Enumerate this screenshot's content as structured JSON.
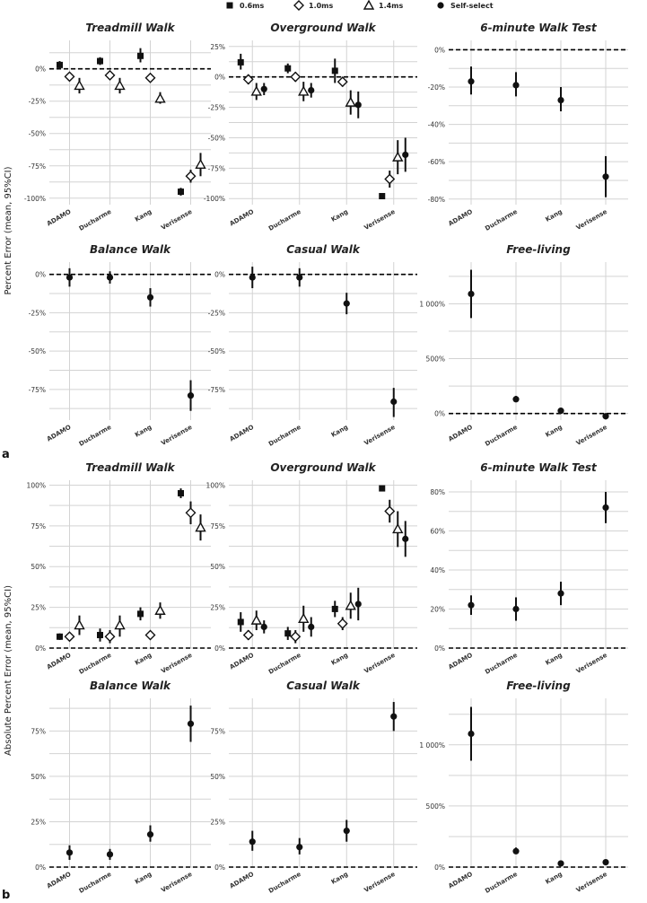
{
  "legend": [
    {
      "label": "0.6ms",
      "marker": "square"
    },
    {
      "label": "1.0ms",
      "marker": "diamond"
    },
    {
      "label": "1.4ms",
      "marker": "triangle"
    },
    {
      "label": "Self-select",
      "marker": "circle"
    }
  ],
  "ylabels": {
    "a": "Percent Error (mean, 95%CI)",
    "b": "Absolute Percent Error (mean, 95%CI)"
  },
  "panel_labels": {
    "a": "a",
    "b": "b"
  },
  "categories": [
    "ADAMO",
    "Ducharme",
    "Kang",
    "Verisense"
  ],
  "colors": {
    "marker": "#111111",
    "grid": "#d3d3d3",
    "reference": "#000000"
  },
  "chart_data": [
    {
      "type": "scatter",
      "section": "a",
      "title": "Treadmill Walk",
      "ylim": [
        -105,
        22
      ],
      "yticks": [
        0,
        -25,
        -50,
        -75,
        -100
      ],
      "yticklabels": [
        "0%",
        "-25%",
        "-50%",
        "-75%",
        "-100%"
      ],
      "series": [
        {
          "name": "0.6ms",
          "points": [
            {
              "x": "ADAMO",
              "y": 3,
              "lo": 0,
              "hi": 6
            },
            {
              "x": "Ducharme",
              "y": 6,
              "lo": 3,
              "hi": 9
            },
            {
              "x": "Kang",
              "y": 10,
              "lo": 5,
              "hi": 16
            },
            {
              "x": "Verisense",
              "y": -95,
              "lo": -98,
              "hi": -92
            }
          ]
        },
        {
          "name": "1.0ms",
          "points": [
            {
              "x": "ADAMO",
              "y": -6,
              "lo": -8,
              "hi": -4
            },
            {
              "x": "Ducharme",
              "y": -5,
              "lo": -8,
              "hi": -2
            },
            {
              "x": "Kang",
              "y": -7,
              "lo": -9,
              "hi": -5
            },
            {
              "x": "Verisense",
              "y": -83,
              "lo": -88,
              "hi": -78
            }
          ]
        },
        {
          "name": "1.4ms",
          "points": [
            {
              "x": "ADAMO",
              "y": -13,
              "lo": -19,
              "hi": -7
            },
            {
              "x": "Ducharme",
              "y": -13,
              "lo": -19,
              "hi": -7
            },
            {
              "x": "Kang",
              "y": -23,
              "lo": -27,
              "hi": -18
            },
            {
              "x": "Verisense",
              "y": -74,
              "lo": -83,
              "hi": -65
            }
          ]
        }
      ]
    },
    {
      "type": "scatter",
      "section": "a",
      "title": "Overground Walk",
      "ylim": [
        -105,
        30
      ],
      "yticks": [
        25,
        0,
        -25,
        -50,
        -75,
        -100
      ],
      "yticklabels": [
        "25%",
        "0%",
        "-25%",
        "-50%",
        "-75%",
        "-100%"
      ],
      "series": [
        {
          "name": "0.6ms",
          "points": [
            {
              "x": "ADAMO",
              "y": 12,
              "lo": 6,
              "hi": 19
            },
            {
              "x": "Ducharme",
              "y": 7,
              "lo": 3,
              "hi": 11
            },
            {
              "x": "Kang",
              "y": 5,
              "lo": -5,
              "hi": 15
            },
            {
              "x": "Verisense",
              "y": -98,
              "lo": -99,
              "hi": -97
            }
          ]
        },
        {
          "name": "1.0ms",
          "points": [
            {
              "x": "ADAMO",
              "y": -2,
              "lo": -6,
              "hi": 2
            },
            {
              "x": "Ducharme",
              "y": 0,
              "lo": -4,
              "hi": 4
            },
            {
              "x": "Kang",
              "y": -4,
              "lo": -8,
              "hi": 0
            },
            {
              "x": "Verisense",
              "y": -84,
              "lo": -91,
              "hi": -77
            }
          ]
        },
        {
          "name": "1.4ms",
          "points": [
            {
              "x": "ADAMO",
              "y": -12,
              "lo": -19,
              "hi": -5
            },
            {
              "x": "Ducharme",
              "y": -12,
              "lo": -20,
              "hi": -4
            },
            {
              "x": "Kang",
              "y": -21,
              "lo": -31,
              "hi": -11
            },
            {
              "x": "Verisense",
              "y": -66,
              "lo": -80,
              "hi": -52
            }
          ]
        },
        {
          "name": "Self-select",
          "points": [
            {
              "x": "ADAMO",
              "y": -10,
              "lo": -15,
              "hi": -5
            },
            {
              "x": "Ducharme",
              "y": -11,
              "lo": -17,
              "hi": -5
            },
            {
              "x": "Kang",
              "y": -23,
              "lo": -34,
              "hi": -12
            },
            {
              "x": "Verisense",
              "y": -64,
              "lo": -78,
              "hi": -50
            }
          ]
        }
      ]
    },
    {
      "type": "scatter",
      "section": "a",
      "title": "6-minute Walk Test",
      "ylim": [
        -83,
        5
      ],
      "yticks": [
        0,
        -20,
        -40,
        -60,
        -80
      ],
      "yticklabels": [
        "0%",
        "-20%",
        "-40%",
        "-60%",
        "-80%"
      ],
      "series": [
        {
          "name": "Self-select",
          "points": [
            {
              "x": "ADAMO",
              "y": -17,
              "lo": -24,
              "hi": -9
            },
            {
              "x": "Ducharme",
              "y": -19,
              "lo": -25,
              "hi": -12
            },
            {
              "x": "Kang",
              "y": -27,
              "lo": -33,
              "hi": -20
            },
            {
              "x": "Verisense",
              "y": -68,
              "lo": -79,
              "hi": -57
            }
          ]
        }
      ]
    },
    {
      "type": "scatter",
      "section": "a",
      "title": "Balance Walk",
      "ylim": [
        -95,
        8
      ],
      "yticks": [
        0,
        -25,
        -50,
        -75
      ],
      "yticklabels": [
        "0%",
        "-25%",
        "-50%",
        "-75%"
      ],
      "series": [
        {
          "name": "Self-select",
          "points": [
            {
              "x": "ADAMO",
              "y": -2,
              "lo": -8,
              "hi": 4
            },
            {
              "x": "Ducharme",
              "y": -2,
              "lo": -6,
              "hi": 2
            },
            {
              "x": "Kang",
              "y": -15,
              "lo": -21,
              "hi": -9
            },
            {
              "x": "Verisense",
              "y": -79,
              "lo": -89,
              "hi": -69
            }
          ]
        }
      ]
    },
    {
      "type": "scatter",
      "section": "a",
      "title": "Casual Walk",
      "ylim": [
        -95,
        8
      ],
      "yticks": [
        0,
        -25,
        -50,
        -75
      ],
      "yticklabels": [
        "0%",
        "-25%",
        "-50%",
        "-75%"
      ],
      "series": [
        {
          "name": "Self-select",
          "points": [
            {
              "x": "ADAMO",
              "y": -2,
              "lo": -9,
              "hi": 5
            },
            {
              "x": "Ducharme",
              "y": -2,
              "lo": -8,
              "hi": 4
            },
            {
              "x": "Kang",
              "y": -19,
              "lo": -26,
              "hi": -12
            },
            {
              "x": "Verisense",
              "y": -83,
              "lo": -93,
              "hi": -74
            }
          ]
        }
      ]
    },
    {
      "type": "scatter",
      "section": "a",
      "title": "Free-living",
      "ylim": [
        -60,
        1380
      ],
      "yticks": [
        0,
        500,
        1000
      ],
      "yticklabels": [
        "0%",
        "500%",
        "1 000%"
      ],
      "series": [
        {
          "name": "Self-select",
          "points": [
            {
              "x": "ADAMO",
              "y": 1090,
              "lo": 870,
              "hi": 1310
            },
            {
              "x": "Ducharme",
              "y": 130,
              "lo": 110,
              "hi": 160
            },
            {
              "x": "Kang",
              "y": 25,
              "lo": 15,
              "hi": 35
            },
            {
              "x": "Verisense",
              "y": -25,
              "lo": -35,
              "hi": -15
            }
          ]
        }
      ]
    },
    {
      "type": "scatter",
      "section": "b",
      "title": "Treadmill Walk",
      "ylim": [
        0,
        103
      ],
      "yticks": [
        0,
        25,
        50,
        75,
        100
      ],
      "yticklabels": [
        "0%",
        "25%",
        "50%",
        "75%",
        "100%"
      ],
      "series": [
        {
          "name": "0.6ms",
          "points": [
            {
              "x": "ADAMO",
              "y": 7,
              "lo": 5,
              "hi": 9
            },
            {
              "x": "Ducharme",
              "y": 8,
              "lo": 4,
              "hi": 12
            },
            {
              "x": "Kang",
              "y": 21,
              "lo": 17,
              "hi": 25
            },
            {
              "x": "Verisense",
              "y": 95,
              "lo": 92,
              "hi": 98
            }
          ]
        },
        {
          "name": "1.0ms",
          "points": [
            {
              "x": "ADAMO",
              "y": 7,
              "lo": 5,
              "hi": 9
            },
            {
              "x": "Ducharme",
              "y": 7,
              "lo": 3,
              "hi": 11
            },
            {
              "x": "Kang",
              "y": 8,
              "lo": 6,
              "hi": 10
            },
            {
              "x": "Verisense",
              "y": 83,
              "lo": 76,
              "hi": 90
            }
          ]
        },
        {
          "name": "1.4ms",
          "points": [
            {
              "x": "ADAMO",
              "y": 14,
              "lo": 8,
              "hi": 20
            },
            {
              "x": "Ducharme",
              "y": 14,
              "lo": 7,
              "hi": 20
            },
            {
              "x": "Kang",
              "y": 23,
              "lo": 18,
              "hi": 28
            },
            {
              "x": "Verisense",
              "y": 74,
              "lo": 66,
              "hi": 82
            }
          ]
        }
      ]
    },
    {
      "type": "scatter",
      "section": "b",
      "title": "Overground Walk",
      "ylim": [
        0,
        103
      ],
      "yticks": [
        0,
        25,
        50,
        75,
        100
      ],
      "yticklabels": [
        "0%",
        "25%",
        "50%",
        "75%",
        "100%"
      ],
      "series": [
        {
          "name": "0.6ms",
          "points": [
            {
              "x": "ADAMO",
              "y": 16,
              "lo": 10,
              "hi": 22
            },
            {
              "x": "Ducharme",
              "y": 9,
              "lo": 5,
              "hi": 13
            },
            {
              "x": "Kang",
              "y": 24,
              "lo": 19,
              "hi": 29
            },
            {
              "x": "Verisense",
              "y": 98,
              "lo": 97,
              "hi": 99
            }
          ]
        },
        {
          "name": "1.0ms",
          "points": [
            {
              "x": "ADAMO",
              "y": 8,
              "lo": 5,
              "hi": 11
            },
            {
              "x": "Ducharme",
              "y": 7,
              "lo": 3,
              "hi": 11
            },
            {
              "x": "Kang",
              "y": 15,
              "lo": 11,
              "hi": 19
            },
            {
              "x": "Verisense",
              "y": 84,
              "lo": 77,
              "hi": 91
            }
          ]
        },
        {
          "name": "1.4ms",
          "points": [
            {
              "x": "ADAMO",
              "y": 17,
              "lo": 11,
              "hi": 23
            },
            {
              "x": "Ducharme",
              "y": 18,
              "lo": 10,
              "hi": 26
            },
            {
              "x": "Kang",
              "y": 26,
              "lo": 18,
              "hi": 34
            },
            {
              "x": "Verisense",
              "y": 73,
              "lo": 62,
              "hi": 84
            }
          ]
        },
        {
          "name": "Self-select",
          "points": [
            {
              "x": "ADAMO",
              "y": 13,
              "lo": 9,
              "hi": 17
            },
            {
              "x": "Ducharme",
              "y": 13,
              "lo": 7,
              "hi": 19
            },
            {
              "x": "Kang",
              "y": 27,
              "lo": 17,
              "hi": 37
            },
            {
              "x": "Verisense",
              "y": 67,
              "lo": 56,
              "hi": 78
            }
          ]
        }
      ]
    },
    {
      "type": "scatter",
      "section": "b",
      "title": "6-minute Walk Test",
      "ylim": [
        0,
        86
      ],
      "yticks": [
        0,
        20,
        40,
        60,
        80
      ],
      "yticklabels": [
        "0%",
        "20%",
        "40%",
        "60%",
        "80%"
      ],
      "series": [
        {
          "name": "Self-select",
          "points": [
            {
              "x": "ADAMO",
              "y": 22,
              "lo": 17,
              "hi": 27
            },
            {
              "x": "Ducharme",
              "y": 20,
              "lo": 14,
              "hi": 26
            },
            {
              "x": "Kang",
              "y": 28,
              "lo": 22,
              "hi": 34
            },
            {
              "x": "Verisense",
              "y": 72,
              "lo": 64,
              "hi": 80
            }
          ]
        }
      ]
    },
    {
      "type": "scatter",
      "section": "b",
      "title": "Balance Walk",
      "ylim": [
        0,
        93
      ],
      "yticks": [
        0,
        25,
        50,
        75
      ],
      "yticklabels": [
        "0%",
        "25%",
        "50%",
        "75%"
      ],
      "series": [
        {
          "name": "Self-select",
          "points": [
            {
              "x": "ADAMO",
              "y": 8,
              "lo": 4,
              "hi": 12
            },
            {
              "x": "Ducharme",
              "y": 7,
              "lo": 4,
              "hi": 10
            },
            {
              "x": "Kang",
              "y": 18,
              "lo": 14,
              "hi": 23
            },
            {
              "x": "Verisense",
              "y": 79,
              "lo": 69,
              "hi": 89
            }
          ]
        }
      ]
    },
    {
      "type": "scatter",
      "section": "b",
      "title": "Casual Walk",
      "ylim": [
        0,
        93
      ],
      "yticks": [
        0,
        25,
        50,
        75
      ],
      "yticklabels": [
        "0%",
        "25%",
        "50%",
        "75%"
      ],
      "series": [
        {
          "name": "Self-select",
          "points": [
            {
              "x": "ADAMO",
              "y": 14,
              "lo": 9,
              "hi": 20
            },
            {
              "x": "Ducharme",
              "y": 11,
              "lo": 7,
              "hi": 16
            },
            {
              "x": "Kang",
              "y": 20,
              "lo": 14,
              "hi": 26
            },
            {
              "x": "Verisense",
              "y": 83,
              "lo": 75,
              "hi": 91
            }
          ]
        }
      ]
    },
    {
      "type": "scatter",
      "section": "b",
      "title": "Free-living",
      "ylim": [
        0,
        1380
      ],
      "yticks": [
        0,
        500,
        1000
      ],
      "yticklabels": [
        "0%",
        "500%",
        "1 000%"
      ],
      "series": [
        {
          "name": "Self-select",
          "points": [
            {
              "x": "ADAMO",
              "y": 1090,
              "lo": 870,
              "hi": 1310
            },
            {
              "x": "Ducharme",
              "y": 130,
              "lo": 110,
              "hi": 160
            },
            {
              "x": "Kang",
              "y": 30,
              "lo": 20,
              "hi": 40
            },
            {
              "x": "Verisense",
              "y": 40,
              "lo": 30,
              "hi": 50
            }
          ]
        }
      ]
    }
  ]
}
